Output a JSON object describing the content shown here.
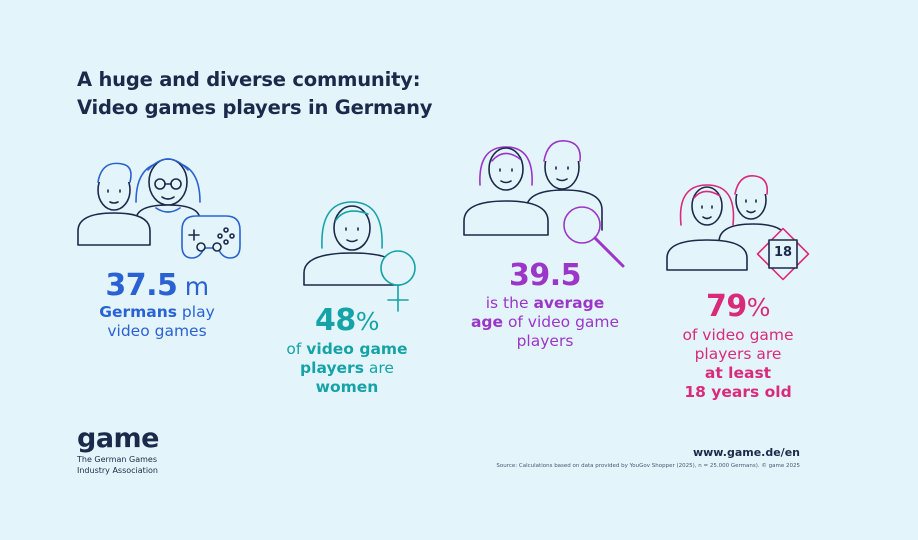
{
  "title": {
    "line1": "A huge and diverse community:",
    "line2": "Video games players in Germany"
  },
  "stats": [
    {
      "big": "37.5",
      "unit": " m",
      "lines": [
        {
          "bold": "Germans",
          "rest": " play"
        },
        {
          "bold": "",
          "rest": "video games"
        }
      ],
      "color": "#2a62d4",
      "icon": "family-controller-icon"
    },
    {
      "big": "48",
      "unit": "%",
      "lines": [
        {
          "pre": "of ",
          "bold": "video game"
        },
        {
          "bold": "players",
          "rest": " are"
        },
        {
          "bold": "women",
          "rest": ""
        }
      ],
      "color": "#15a3a8",
      "icon": "woman-female-symbol-icon"
    },
    {
      "big": "39.5",
      "unit": "",
      "lines": [
        {
          "pre": "is the ",
          "bold": "average"
        },
        {
          "bold": "age",
          "rest": " of video game"
        },
        {
          "bold": "",
          "rest": "players"
        }
      ],
      "color": "#9b36c9",
      "icon": "couple-magnifier-icon"
    },
    {
      "big": "79",
      "unit": "%",
      "lines": [
        {
          "bold": "",
          "rest": "of video game"
        },
        {
          "bold": "",
          "rest": "players are"
        },
        {
          "bold": "at least",
          "rest": ""
        },
        {
          "bold": "18 years old",
          "rest": ""
        }
      ],
      "color": "#d92a7c",
      "icon": "couple-age-18-icon",
      "badge": "18"
    }
  ],
  "footer": {
    "logo_word": "game",
    "logo_sub1": "The German Games",
    "logo_sub2": "Industry Association",
    "url": "www.game.de/en",
    "source": "Source: Calculations based on data provided by YouGov Shopper (2025), n = 25.000 Germans). © game 2025"
  }
}
